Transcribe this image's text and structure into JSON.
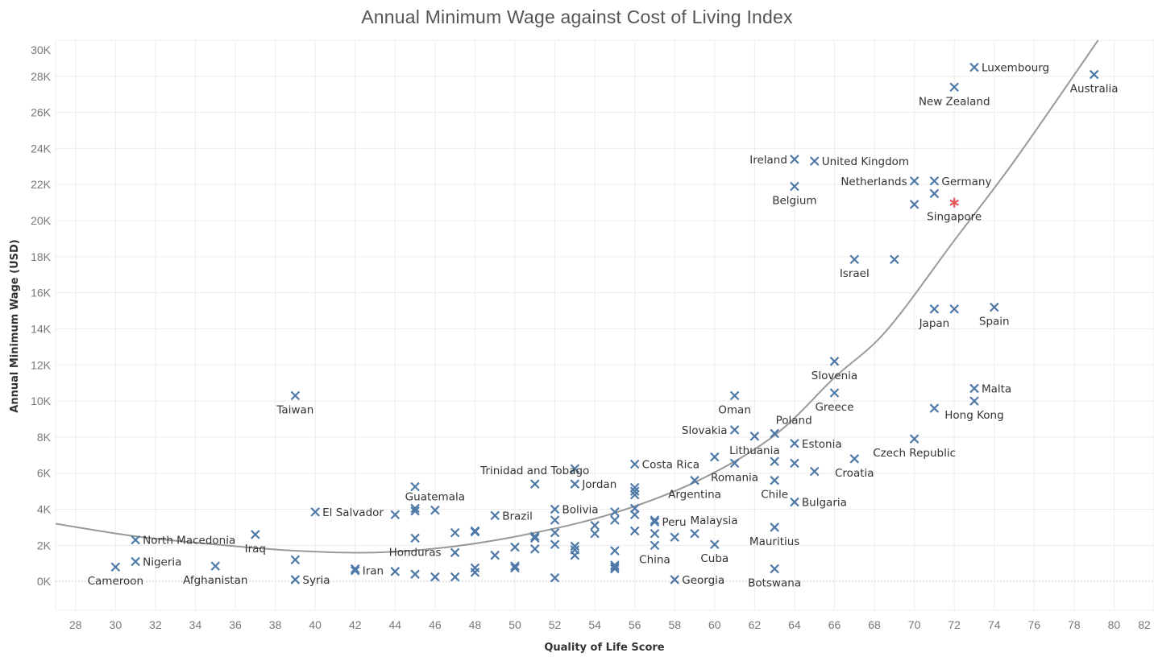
{
  "chart_data": {
    "type": "scatter",
    "title": "Annual Minimum Wage against Cost of Living Index",
    "xlabel": "Quality of Life Score",
    "ylabel": "Annual Minimum Wage (USD)",
    "xlim": [
      27,
      82
    ],
    "ylim": [
      -1600,
      30000
    ],
    "xticks": [
      28,
      30,
      32,
      34,
      36,
      38,
      40,
      42,
      44,
      46,
      48,
      50,
      52,
      54,
      56,
      58,
      60,
      62,
      64,
      66,
      68,
      70,
      72,
      74,
      76,
      78,
      80,
      82
    ],
    "yticks": [
      0,
      2000,
      4000,
      6000,
      8000,
      10000,
      12000,
      14000,
      16000,
      18000,
      20000,
      22000,
      24000,
      26000,
      28000,
      30000
    ],
    "ytick_labels": [
      "0K",
      "2K",
      "4K",
      "6K",
      "8K",
      "10K",
      "12K",
      "14K",
      "16K",
      "18K",
      "20K",
      "22K",
      "24K",
      "26K",
      "28K",
      "30K"
    ],
    "grid": true,
    "colors": {
      "marker": "#4e79a7",
      "highlight": "#e15759",
      "trend": "#999999"
    },
    "points": [
      {
        "x": 30,
        "y": 800,
        "label": "Cameroon",
        "pos": "below"
      },
      {
        "x": 31,
        "y": 2300,
        "label": "North Macedonia",
        "pos": "right"
      },
      {
        "x": 31,
        "y": 1100,
        "label": "Nigeria",
        "pos": "right"
      },
      {
        "x": 35,
        "y": 850,
        "label": "Afghanistan",
        "pos": "below"
      },
      {
        "x": 37,
        "y": 2600,
        "label": "Iraq",
        "pos": "below"
      },
      {
        "x": 39,
        "y": 10300,
        "label": "Taiwan",
        "pos": "below"
      },
      {
        "x": 39,
        "y": 1200,
        "label": "",
        "pos": ""
      },
      {
        "x": 39,
        "y": 100,
        "label": "Syria",
        "pos": "right"
      },
      {
        "x": 40,
        "y": 3850,
        "label": "El Salvador",
        "pos": "right"
      },
      {
        "x": 42,
        "y": 700,
        "label": "",
        "pos": ""
      },
      {
        "x": 42,
        "y": 600,
        "label": "Iran",
        "pos": "right"
      },
      {
        "x": 44,
        "y": 3700,
        "label": "",
        "pos": ""
      },
      {
        "x": 44,
        "y": 550,
        "label": "",
        "pos": ""
      },
      {
        "x": 45,
        "y": 5250,
        "label": "",
        "pos": ""
      },
      {
        "x": 45,
        "y": 4050,
        "label": "",
        "pos": ""
      },
      {
        "x": 45,
        "y": 3900,
        "label": "",
        "pos": ""
      },
      {
        "x": 45,
        "y": 2400,
        "label": "Honduras",
        "pos": "below"
      },
      {
        "x": 45,
        "y": 400,
        "label": "",
        "pos": ""
      },
      {
        "x": 46,
        "y": 3950,
        "label": "Guatemala",
        "pos": "above"
      },
      {
        "x": 46,
        "y": 250,
        "label": "",
        "pos": ""
      },
      {
        "x": 47,
        "y": 2700,
        "label": "",
        "pos": ""
      },
      {
        "x": 47,
        "y": 1600,
        "label": "",
        "pos": ""
      },
      {
        "x": 47,
        "y": 250,
        "label": "",
        "pos": ""
      },
      {
        "x": 48,
        "y": 2800,
        "label": "",
        "pos": ""
      },
      {
        "x": 48,
        "y": 2750,
        "label": "",
        "pos": ""
      },
      {
        "x": 48,
        "y": 750,
        "label": "",
        "pos": ""
      },
      {
        "x": 48,
        "y": 500,
        "label": "",
        "pos": ""
      },
      {
        "x": 49,
        "y": 3650,
        "label": "Brazil",
        "pos": "right"
      },
      {
        "x": 49,
        "y": 1450,
        "label": "",
        "pos": ""
      },
      {
        "x": 50,
        "y": 1900,
        "label": "",
        "pos": ""
      },
      {
        "x": 50,
        "y": 850,
        "label": "",
        "pos": ""
      },
      {
        "x": 50,
        "y": 750,
        "label": "",
        "pos": ""
      },
      {
        "x": 51,
        "y": 5400,
        "label": "Trinidad and Tobago",
        "pos": "above"
      },
      {
        "x": 51,
        "y": 2500,
        "label": "",
        "pos": ""
      },
      {
        "x": 51,
        "y": 2400,
        "label": "",
        "pos": ""
      },
      {
        "x": 51,
        "y": 1800,
        "label": "",
        "pos": ""
      },
      {
        "x": 52,
        "y": 4000,
        "label": "Bolivia",
        "pos": "right"
      },
      {
        "x": 52,
        "y": 3400,
        "label": "",
        "pos": ""
      },
      {
        "x": 52,
        "y": 2700,
        "label": "",
        "pos": ""
      },
      {
        "x": 52,
        "y": 2050,
        "label": "",
        "pos": ""
      },
      {
        "x": 52,
        "y": 200,
        "label": "",
        "pos": ""
      },
      {
        "x": 53,
        "y": 6250,
        "label": "",
        "pos": ""
      },
      {
        "x": 53,
        "y": 5400,
        "label": "Jordan",
        "pos": "right"
      },
      {
        "x": 53,
        "y": 1950,
        "label": "",
        "pos": ""
      },
      {
        "x": 53,
        "y": 1750,
        "label": "",
        "pos": ""
      },
      {
        "x": 53,
        "y": 1450,
        "label": "",
        "pos": ""
      },
      {
        "x": 54,
        "y": 3100,
        "label": "",
        "pos": ""
      },
      {
        "x": 54,
        "y": 2650,
        "label": "",
        "pos": ""
      },
      {
        "x": 55,
        "y": 3850,
        "label": "",
        "pos": ""
      },
      {
        "x": 55,
        "y": 3400,
        "label": "",
        "pos": ""
      },
      {
        "x": 55,
        "y": 1700,
        "label": "",
        "pos": ""
      },
      {
        "x": 55,
        "y": 900,
        "label": "",
        "pos": ""
      },
      {
        "x": 55,
        "y": 800,
        "label": "",
        "pos": ""
      },
      {
        "x": 55,
        "y": 700,
        "label": "",
        "pos": ""
      },
      {
        "x": 56,
        "y": 6500,
        "label": "Costa Rica",
        "pos": "right"
      },
      {
        "x": 56,
        "y": 5200,
        "label": "",
        "pos": ""
      },
      {
        "x": 56,
        "y": 5000,
        "label": "",
        "pos": ""
      },
      {
        "x": 56,
        "y": 4800,
        "label": "",
        "pos": ""
      },
      {
        "x": 56,
        "y": 4050,
        "label": "",
        "pos": ""
      },
      {
        "x": 56,
        "y": 3700,
        "label": "",
        "pos": ""
      },
      {
        "x": 56,
        "y": 2800,
        "label": "",
        "pos": ""
      },
      {
        "x": 57,
        "y": 3400,
        "label": "",
        "pos": ""
      },
      {
        "x": 57,
        "y": 3300,
        "label": "Peru",
        "pos": "right"
      },
      {
        "x": 57,
        "y": 2650,
        "label": "",
        "pos": ""
      },
      {
        "x": 57,
        "y": 2000,
        "label": "China",
        "pos": "below"
      },
      {
        "x": 58,
        "y": 2450,
        "label": "",
        "pos": ""
      },
      {
        "x": 58,
        "y": 100,
        "label": "Georgia",
        "pos": "right"
      },
      {
        "x": 59,
        "y": 5600,
        "label": "Argentina",
        "pos": "below"
      },
      {
        "x": 59,
        "y": 2650,
        "label": "Malaysia",
        "pos": "aboveright"
      },
      {
        "x": 60,
        "y": 6900,
        "label": "",
        "pos": ""
      },
      {
        "x": 60,
        "y": 2050,
        "label": "Cuba",
        "pos": "below"
      },
      {
        "x": 61,
        "y": 10300,
        "label": "Oman",
        "pos": "below"
      },
      {
        "x": 61,
        "y": 8400,
        "label": "Slovakia",
        "pos": "left"
      },
      {
        "x": 61,
        "y": 6550,
        "label": "Romania",
        "pos": "below"
      },
      {
        "x": 62,
        "y": 8050,
        "label": "Lithuania",
        "pos": "below"
      },
      {
        "x": 63,
        "y": 8200,
        "label": "Poland",
        "pos": "aboveright"
      },
      {
        "x": 63,
        "y": 6650,
        "label": "",
        "pos": ""
      },
      {
        "x": 63,
        "y": 5600,
        "label": "Chile",
        "pos": "below"
      },
      {
        "x": 63,
        "y": 3000,
        "label": "Mauritius",
        "pos": "below"
      },
      {
        "x": 63,
        "y": 700,
        "label": "Botswana",
        "pos": "below"
      },
      {
        "x": 64,
        "y": 7650,
        "label": "Estonia",
        "pos": "right"
      },
      {
        "x": 64,
        "y": 6550,
        "label": "",
        "pos": ""
      },
      {
        "x": 64,
        "y": 4400,
        "label": "Bulgaria",
        "pos": "right"
      },
      {
        "x": 64,
        "y": 23400,
        "label": "Ireland",
        "pos": "left"
      },
      {
        "x": 64,
        "y": 21900,
        "label": "Belgium",
        "pos": "below"
      },
      {
        "x": 65,
        "y": 6100,
        "label": "",
        "pos": ""
      },
      {
        "x": 65,
        "y": 23300,
        "label": "United Kingdom",
        "pos": "right"
      },
      {
        "x": 66,
        "y": 12200,
        "label": "Slovenia",
        "pos": "below"
      },
      {
        "x": 66,
        "y": 10450,
        "label": "Greece",
        "pos": "below"
      },
      {
        "x": 67,
        "y": 6800,
        "label": "Croatia",
        "pos": "below"
      },
      {
        "x": 67,
        "y": 17850,
        "label": "Israel",
        "pos": "below"
      },
      {
        "x": 69,
        "y": 17850,
        "label": "",
        "pos": ""
      },
      {
        "x": 70,
        "y": 7900,
        "label": "Czech Republic",
        "pos": "below"
      },
      {
        "x": 70,
        "y": 22200,
        "label": "Netherlands",
        "pos": "left"
      },
      {
        "x": 70,
        "y": 20900,
        "label": "",
        "pos": ""
      },
      {
        "x": 71,
        "y": 22200,
        "label": "Germany",
        "pos": "right"
      },
      {
        "x": 71,
        "y": 21500,
        "label": "",
        "pos": ""
      },
      {
        "x": 71,
        "y": 15100,
        "label": "Japan",
        "pos": "below"
      },
      {
        "x": 71,
        "y": 9600,
        "label": "",
        "pos": ""
      },
      {
        "x": 72,
        "y": 21000,
        "label": "Singapore",
        "pos": "below",
        "highlight": true
      },
      {
        "x": 72,
        "y": 15100,
        "label": "",
        "pos": ""
      },
      {
        "x": 72,
        "y": 27400,
        "label": "New Zealand",
        "pos": "below"
      },
      {
        "x": 73,
        "y": 28500,
        "label": "Luxembourg",
        "pos": "right"
      },
      {
        "x": 73,
        "y": 10700,
        "label": "Malta",
        "pos": "right"
      },
      {
        "x": 73,
        "y": 10000,
        "label": "Hong Kong",
        "pos": "below"
      },
      {
        "x": 74,
        "y": 15200,
        "label": "Spain",
        "pos": "below"
      },
      {
        "x": 79,
        "y": 28100,
        "label": "Australia",
        "pos": "below"
      }
    ],
    "trendline": {
      "type": "polynomial",
      "samples": [
        [
          27,
          3200
        ],
        [
          31,
          2500
        ],
        [
          35,
          2050
        ],
        [
          39,
          1700
        ],
        [
          43,
          1600
        ],
        [
          47,
          1950
        ],
        [
          51,
          2700
        ],
        [
          55,
          3800
        ],
        [
          59.2,
          5600
        ],
        [
          63,
          8100
        ],
        [
          66,
          11300
        ],
        [
          68.6,
          13900
        ],
        [
          72,
          18900
        ],
        [
          75,
          23300
        ],
        [
          79.2,
          30000
        ]
      ]
    }
  }
}
